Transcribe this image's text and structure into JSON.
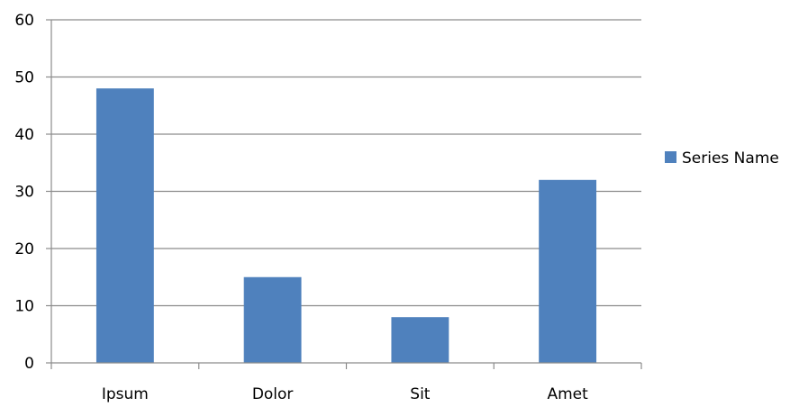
{
  "chart_data": {
    "type": "bar",
    "categories": [
      "Ipsum",
      "Dolor",
      "Sit",
      "Amet"
    ],
    "series": [
      {
        "name": "Series Name",
        "values": [
          48,
          15,
          8,
          32
        ],
        "color": "#4f81bd"
      }
    ],
    "ylim": [
      0,
      60
    ],
    "yticks": [
      0,
      10,
      20,
      30,
      40,
      50,
      60
    ],
    "grid": true,
    "legend_position": "right",
    "colors": {
      "gridline": "#8c8c8c",
      "axis": "#8c8c8c",
      "bar": "#4f81bd"
    }
  }
}
